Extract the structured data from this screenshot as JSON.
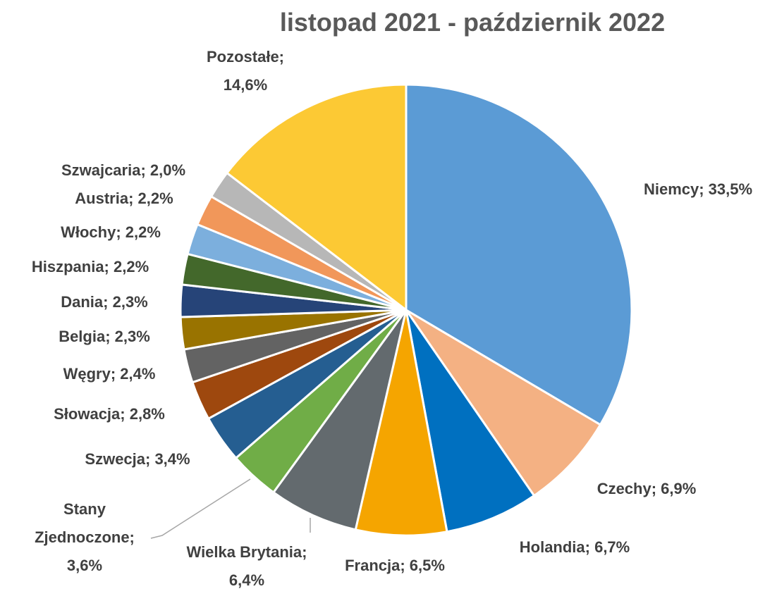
{
  "chart_data": {
    "type": "pie",
    "title": "listopad  2021 - październik 2022",
    "values": [
      33.5,
      6.9,
      6.7,
      6.5,
      6.4,
      3.6,
      3.4,
      2.8,
      2.4,
      2.3,
      2.3,
      2.2,
      2.2,
      2.2,
      2.0,
      14.6
    ],
    "value_labels": [
      "Niemcy; 33,5%",
      "Czechy; 6,9%",
      "Holandia; 6,7%",
      "Francja; 6,5%",
      "Wielka Brytania;\n6,4%",
      "Stany\nZjednoczone;\n3,6%",
      "Szwecja; 3,4%",
      "Słowacja; 2,8%",
      "Węgry; 2,4%",
      "Belgia; 2,3%",
      "Dania; 2,3%",
      "Hiszpania; 2,2%",
      "Włochy; 2,2%",
      "Austria; 2,2%",
      "Szwajcaria; 2,0%",
      "Pozostałe;\n14,6%"
    ],
    "colors": [
      "#5b9bd5",
      "#f4b183",
      "#0070c0",
      "#f5a500",
      "#636a6e",
      "#70ad47",
      "#255e91",
      "#9e480e",
      "#636363",
      "#997300",
      "#264478",
      "#43682b",
      "#7cafdd",
      "#f1975a",
      "#b7b7b7",
      "#fcc934"
    ]
  }
}
